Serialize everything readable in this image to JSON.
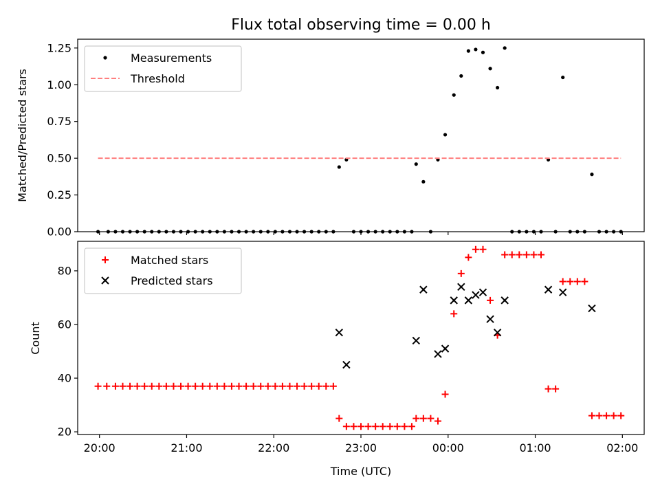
{
  "chart_data": [
    {
      "type": "scatter",
      "title": "Flux total observing time = 0.00 h",
      "xlabel": "",
      "ylabel": "Matched/Predicted stars",
      "ylim": [
        0,
        1.31
      ],
      "xlim": [
        "19:45",
        "02:15"
      ],
      "yticks": [
        "0.00",
        "0.25",
        "0.50",
        "0.75",
        "1.00",
        "1.25"
      ],
      "xticks": [
        "20:00",
        "21:00",
        "22:00",
        "23:00",
        "00:00",
        "01:00",
        "02:00"
      ],
      "legend_position": "top-left",
      "series": [
        {
          "name": "Measurements",
          "marker": "dot",
          "color": "#000000",
          "points": [
            [
              "19:59",
              0
            ],
            [
              "20:06",
              0
            ],
            [
              "20:11",
              0
            ],
            [
              "20:16",
              0
            ],
            [
              "20:21",
              0
            ],
            [
              "20:26",
              0
            ],
            [
              "20:31",
              0
            ],
            [
              "20:36",
              0
            ],
            [
              "20:41",
              0
            ],
            [
              "20:46",
              0
            ],
            [
              "20:51",
              0
            ],
            [
              "20:56",
              0
            ],
            [
              "21:01",
              0
            ],
            [
              "21:06",
              0
            ],
            [
              "21:11",
              0
            ],
            [
              "21:16",
              0
            ],
            [
              "21:21",
              0
            ],
            [
              "21:26",
              0
            ],
            [
              "21:31",
              0
            ],
            [
              "21:36",
              0
            ],
            [
              "21:41",
              0
            ],
            [
              "21:46",
              0
            ],
            [
              "21:51",
              0
            ],
            [
              "21:56",
              0
            ],
            [
              "22:01",
              0
            ],
            [
              "22:06",
              0
            ],
            [
              "22:11",
              0
            ],
            [
              "22:16",
              0
            ],
            [
              "22:21",
              0
            ],
            [
              "22:26",
              0
            ],
            [
              "22:31",
              0
            ],
            [
              "22:36",
              0
            ],
            [
              "22:41",
              0
            ],
            [
              "22:45",
              0.44
            ],
            [
              "22:50",
              0.49
            ],
            [
              "22:55",
              0
            ],
            [
              "23:00",
              0
            ],
            [
              "23:05",
              0
            ],
            [
              "23:10",
              0
            ],
            [
              "23:15",
              0
            ],
            [
              "23:20",
              0
            ],
            [
              "23:25",
              0
            ],
            [
              "23:30",
              0
            ],
            [
              "23:35",
              0
            ],
            [
              "23:38",
              0.46
            ],
            [
              "23:43",
              0.34
            ],
            [
              "23:48",
              0
            ],
            [
              "23:53",
              0.49
            ],
            [
              "23:58",
              0.66
            ],
            [
              "00:04",
              0.93
            ],
            [
              "00:09",
              1.06
            ],
            [
              "00:14",
              1.23
            ],
            [
              "00:19",
              1.24
            ],
            [
              "00:24",
              1.22
            ],
            [
              "00:29",
              1.11
            ],
            [
              "00:34",
              0.98
            ],
            [
              "00:39",
              1.25
            ],
            [
              "00:44",
              0
            ],
            [
              "00:49",
              0
            ],
            [
              "00:54",
              0
            ],
            [
              "00:59",
              0
            ],
            [
              "01:04",
              0
            ],
            [
              "01:09",
              0.49
            ],
            [
              "01:14",
              0
            ],
            [
              "01:19",
              1.05
            ],
            [
              "01:24",
              0
            ],
            [
              "01:29",
              0
            ],
            [
              "01:34",
              0
            ],
            [
              "01:39",
              0.39
            ],
            [
              "01:44",
              0
            ],
            [
              "01:49",
              0
            ],
            [
              "01:54",
              0
            ],
            [
              "01:59",
              0
            ]
          ]
        },
        {
          "name": "Threshold",
          "style": "dashed-line",
          "color": "#ff7f7f",
          "points": [
            [
              "19:59",
              0.5
            ],
            [
              "01:59",
              0.5
            ]
          ]
        }
      ]
    },
    {
      "type": "scatter",
      "title": "",
      "xlabel": "Time (UTC)",
      "ylabel": "Count",
      "ylim": [
        19,
        91
      ],
      "xlim": [
        "19:45",
        "02:15"
      ],
      "yticks": [
        "20",
        "40",
        "60",
        "80"
      ],
      "xticks": [
        "20:00",
        "21:00",
        "22:00",
        "23:00",
        "00:00",
        "01:00",
        "02:00"
      ],
      "legend_position": "top-left",
      "series": [
        {
          "name": "Matched stars",
          "marker": "plus",
          "color": "#ff0000",
          "points": [
            [
              "19:59",
              37
            ],
            [
              "20:05",
              37
            ],
            [
              "20:11",
              37
            ],
            [
              "20:16",
              37
            ],
            [
              "20:21",
              37
            ],
            [
              "20:26",
              37
            ],
            [
              "20:31",
              37
            ],
            [
              "20:36",
              37
            ],
            [
              "20:41",
              37
            ],
            [
              "20:46",
              37
            ],
            [
              "20:51",
              37
            ],
            [
              "20:56",
              37
            ],
            [
              "21:01",
              37
            ],
            [
              "21:06",
              37
            ],
            [
              "21:11",
              37
            ],
            [
              "21:16",
              37
            ],
            [
              "21:21",
              37
            ],
            [
              "21:26",
              37
            ],
            [
              "21:31",
              37
            ],
            [
              "21:36",
              37
            ],
            [
              "21:41",
              37
            ],
            [
              "21:46",
              37
            ],
            [
              "21:51",
              37
            ],
            [
              "21:56",
              37
            ],
            [
              "22:01",
              37
            ],
            [
              "22:06",
              37
            ],
            [
              "22:11",
              37
            ],
            [
              "22:16",
              37
            ],
            [
              "22:21",
              37
            ],
            [
              "22:26",
              37
            ],
            [
              "22:31",
              37
            ],
            [
              "22:36",
              37
            ],
            [
              "22:41",
              37
            ],
            [
              "22:45",
              25
            ],
            [
              "22:50",
              22
            ],
            [
              "22:55",
              22
            ],
            [
              "23:00",
              22
            ],
            [
              "23:05",
              22
            ],
            [
              "23:10",
              22
            ],
            [
              "23:15",
              22
            ],
            [
              "23:20",
              22
            ],
            [
              "23:25",
              22
            ],
            [
              "23:30",
              22
            ],
            [
              "23:35",
              22
            ],
            [
              "23:38",
              25
            ],
            [
              "23:43",
              25
            ],
            [
              "23:48",
              25
            ],
            [
              "23:53",
              24
            ],
            [
              "23:58",
              34
            ],
            [
              "00:04",
              64
            ],
            [
              "00:09",
              79
            ],
            [
              "00:14",
              85
            ],
            [
              "00:19",
              88
            ],
            [
              "00:24",
              88
            ],
            [
              "00:29",
              69
            ],
            [
              "00:34",
              56
            ],
            [
              "00:39",
              86
            ],
            [
              "00:44",
              86
            ],
            [
              "00:49",
              86
            ],
            [
              "00:54",
              86
            ],
            [
              "00:59",
              86
            ],
            [
              "01:04",
              86
            ],
            [
              "01:09",
              36
            ],
            [
              "01:14",
              36
            ],
            [
              "01:19",
              76
            ],
            [
              "01:24",
              76
            ],
            [
              "01:29",
              76
            ],
            [
              "01:34",
              76
            ],
            [
              "01:39",
              26
            ],
            [
              "01:44",
              26
            ],
            [
              "01:49",
              26
            ],
            [
              "01:54",
              26
            ],
            [
              "01:59",
              26
            ]
          ]
        },
        {
          "name": "Predicted stars",
          "marker": "x",
          "color": "#000000",
          "points": [
            [
              "22:45",
              57
            ],
            [
              "22:50",
              45
            ],
            [
              "23:38",
              54
            ],
            [
              "23:43",
              73
            ],
            [
              "23:53",
              49
            ],
            [
              "23:58",
              51
            ],
            [
              "00:04",
              69
            ],
            [
              "00:09",
              74
            ],
            [
              "00:14",
              69
            ],
            [
              "00:19",
              71
            ],
            [
              "00:24",
              72
            ],
            [
              "00:29",
              62
            ],
            [
              "00:34",
              57
            ],
            [
              "00:39",
              69
            ],
            [
              "01:09",
              73
            ],
            [
              "01:19",
              72
            ],
            [
              "01:39",
              66
            ]
          ]
        }
      ]
    }
  ]
}
